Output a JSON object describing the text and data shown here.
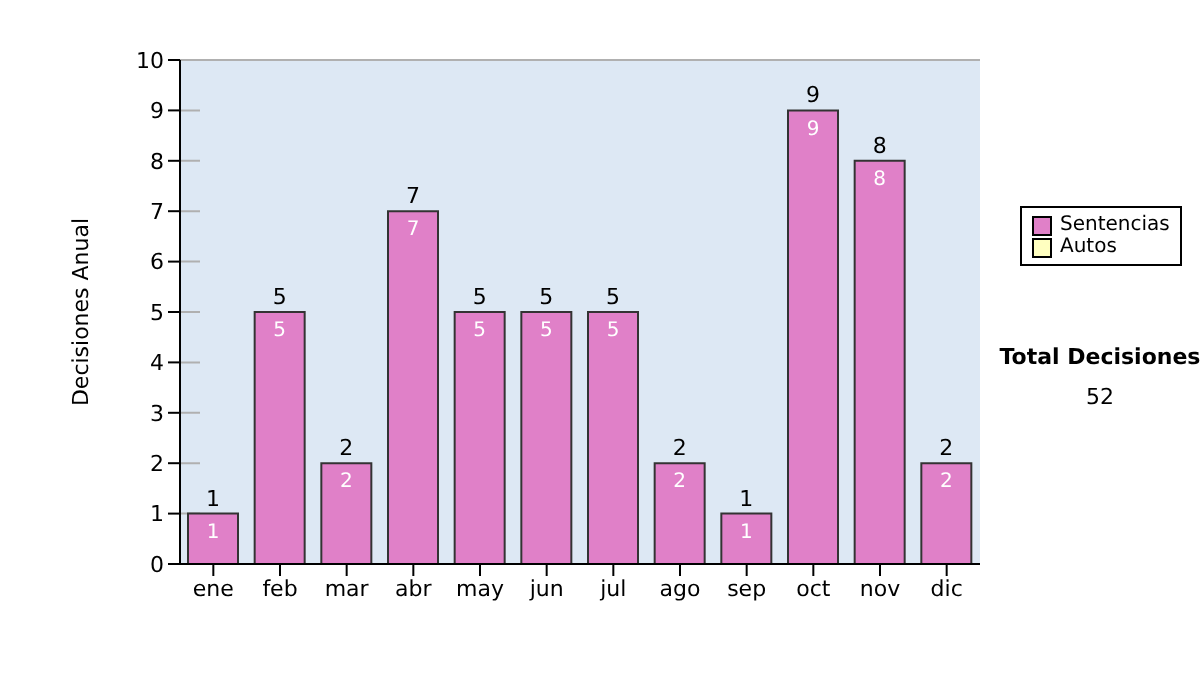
{
  "chart_data": {
    "type": "bar",
    "ylabel": "Decisiones Anual",
    "categories": [
      "ene",
      "feb",
      "mar",
      "abr",
      "may",
      "jun",
      "jul",
      "ago",
      "sep",
      "oct",
      "nov",
      "dic"
    ],
    "series": [
      {
        "name": "Sentencias",
        "color": "#e080c8",
        "values": [
          1,
          5,
          2,
          7,
          5,
          5,
          5,
          2,
          1,
          9,
          8,
          2
        ]
      },
      {
        "name": "Autos",
        "color": "#ffffc0",
        "values": [
          null,
          null,
          null,
          null,
          null,
          null,
          null,
          null,
          null,
          null,
          null,
          null
        ]
      }
    ],
    "stacked": true,
    "data_labels": true,
    "totals": [
      "1",
      "5",
      "2",
      "7",
      "5",
      "5",
      "5",
      "2",
      "1",
      "9",
      "8",
      "2"
    ],
    "ylim": [
      0,
      10
    ],
    "yticks": [
      0,
      1,
      2,
      3,
      4,
      5,
      6,
      7,
      8,
      9,
      10
    ],
    "grid": "y",
    "legend": "right",
    "annotations": [
      "Total Decisiones",
      "52"
    ]
  }
}
